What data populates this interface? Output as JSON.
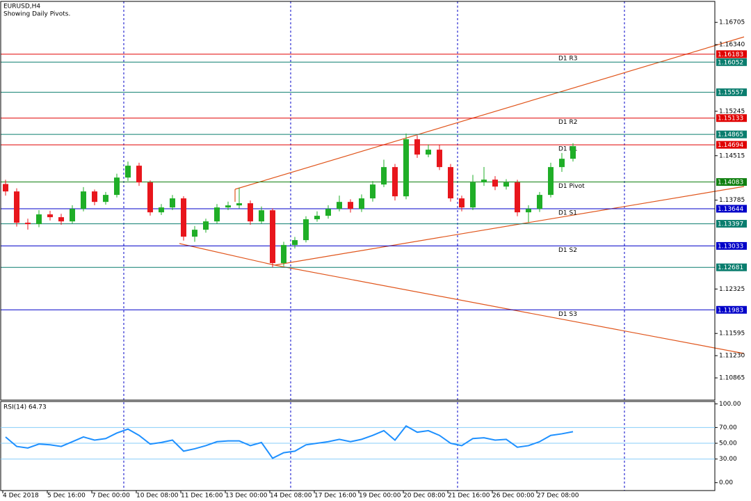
{
  "chart_data": {
    "type": "candlestick",
    "title": "EURUSD,H4",
    "subtitle": "Showing Daily Pivots.",
    "up_color": "#1fae27",
    "down_color": "#e8161c",
    "ylim": [
      1.105,
      1.1705
    ],
    "yticks": [
      1.16705,
      {
        "value": 1.1634,
        "label": "1.16340"
      },
      1.15245,
      1.14515,
      1.13785,
      1.12325,
      1.11595,
      {
        "value": 1.1123,
        "label": "1.11230"
      },
      1.10865
    ],
    "x_labels": [
      "4 Dec 2018",
      "5 Dec 16:00",
      "7 Dec 00:00",
      "10 Dec 08:00",
      "11 Dec 16:00",
      "13 Dec 00:00",
      "14 Dec 08:00",
      "17 Dec 16:00",
      "19 Dec 00:00",
      "20 Dec 08:00",
      "21 Dec 16:00",
      "26 Dec 00:00",
      "27 Dec 08:00"
    ],
    "levels": [
      {
        "value": 1.16183,
        "color": "#e00000",
        "name": "D1 R3"
      },
      {
        "value": 1.16052,
        "color": "#0a7d6e"
      },
      {
        "value": 1.15557,
        "color": "#0a7d6e"
      },
      {
        "value": 1.15133,
        "color": "#e00000",
        "name": "D1 R2"
      },
      {
        "value": 1.14865,
        "color": "#0a7d6e"
      },
      {
        "value": 1.14694,
        "color": "#e00000",
        "name": "D1 R1"
      },
      {
        "value": 1.14083,
        "color": "#108010",
        "name": "D1 Pivot"
      },
      {
        "value": 1.13644,
        "color": "#0000c8",
        "name": "D1 S1"
      },
      {
        "value": 1.13397,
        "color": "#0a7d6e"
      },
      {
        "value": 1.13033,
        "color": "#0000c8",
        "name": "D1 S2"
      },
      {
        "value": 1.12681,
        "color": "#0a7d6e"
      },
      {
        "value": 1.11983,
        "color": "#0000c8",
        "name": "D1 S3"
      }
    ],
    "ohlc": [
      [
        1.1405,
        1.1412,
        1.1386,
        1.13928
      ],
      [
        1.13928,
        1.1398,
        1.1335,
        1.13414
      ],
      [
        1.13414,
        1.1348,
        1.133,
        1.13391
      ],
      [
        1.13391,
        1.1362,
        1.1334,
        1.13551
      ],
      [
        1.13551,
        1.1361,
        1.1345,
        1.13505
      ],
      [
        1.13505,
        1.1356,
        1.1338,
        1.13436
      ],
      [
        1.13436,
        1.137,
        1.134,
        1.13642
      ],
      [
        1.13642,
        1.14,
        1.136,
        1.13928
      ],
      [
        1.13928,
        1.1396,
        1.137,
        1.13756
      ],
      [
        1.13756,
        1.1392,
        1.1371,
        1.13871
      ],
      [
        1.13871,
        1.1422,
        1.1383,
        1.14156
      ],
      [
        1.14156,
        1.1442,
        1.141,
        1.14351
      ],
      [
        1.14351,
        1.144,
        1.1402,
        1.14076
      ],
      [
        1.14076,
        1.1411,
        1.1353,
        1.13585
      ],
      [
        1.13585,
        1.1372,
        1.1354,
        1.13665
      ],
      [
        1.13665,
        1.1387,
        1.1362,
        1.13814
      ],
      [
        1.13814,
        1.1385,
        1.1312,
        1.13185
      ],
      [
        1.13185,
        1.1336,
        1.131,
        1.13299
      ],
      [
        1.13299,
        1.1348,
        1.1325,
        1.13436
      ],
      [
        1.13436,
        1.1372,
        1.134,
        1.13665
      ],
      [
        1.13665,
        1.1376,
        1.1362,
        1.13699
      ],
      [
        1.13699,
        1.1399,
        1.1365,
        1.13734
      ],
      [
        1.13734,
        1.1378,
        1.1338,
        1.13436
      ],
      [
        1.13436,
        1.1368,
        1.134,
        1.13619
      ],
      [
        1.13619,
        1.1365,
        1.1268,
        1.12751
      ],
      [
        1.12751,
        1.131,
        1.127,
        1.13048
      ],
      [
        1.13048,
        1.1318,
        1.1299,
        1.13128
      ],
      [
        1.13128,
        1.1352,
        1.1309,
        1.13471
      ],
      [
        1.13471,
        1.136,
        1.1343,
        1.13528
      ],
      [
        1.13528,
        1.137,
        1.1348,
        1.13642
      ],
      [
        1.13642,
        1.1386,
        1.136,
        1.13756
      ],
      [
        1.13756,
        1.138,
        1.1358,
        1.13642
      ],
      [
        1.13642,
        1.1388,
        1.1359,
        1.13814
      ],
      [
        1.13814,
        1.141,
        1.1376,
        1.14042
      ],
      [
        1.14042,
        1.1445,
        1.14,
        1.14328
      ],
      [
        1.14328,
        1.1438,
        1.1378,
        1.13848
      ],
      [
        1.13848,
        1.1488,
        1.138,
        1.14785
      ],
      [
        1.14785,
        1.1485,
        1.1448,
        1.14534
      ],
      [
        1.14534,
        1.147,
        1.1449,
        1.14614
      ],
      [
        1.14614,
        1.1469,
        1.1428,
        1.14328
      ],
      [
        1.14328,
        1.1438,
        1.1376,
        1.13814
      ],
      [
        1.13814,
        1.1386,
        1.136,
        1.13665
      ],
      [
        1.13665,
        1.142,
        1.1362,
        1.14076
      ],
      [
        1.14076,
        1.1433,
        1.1402,
        1.14122
      ],
      [
        1.14122,
        1.1418,
        1.1395,
        1.14008
      ],
      [
        1.14008,
        1.1413,
        1.1396,
        1.14076
      ],
      [
        1.14076,
        1.1412,
        1.1352,
        1.13585
      ],
      [
        1.13585,
        1.137,
        1.1342,
        1.13642
      ],
      [
        1.13642,
        1.1392,
        1.1359,
        1.13871
      ],
      [
        1.13871,
        1.144,
        1.1383,
        1.14328
      ],
      [
        1.14328,
        1.1456,
        1.1425,
        1.14465
      ],
      [
        1.14465,
        1.1472,
        1.1442,
        1.14671
      ]
    ],
    "rsi": {
      "label": "RSI(14) 64.73",
      "color": "#1e90ff",
      "ylim": [
        -10,
        103
      ],
      "yticks": [
        {
          "value": 100,
          "label": "100.00"
        },
        {
          "value": 70,
          "label": "70.00"
        },
        {
          "value": 50,
          "label": "50.00"
        },
        {
          "value": 30,
          "label": "30.00"
        },
        {
          "value": 0,
          "label": "0.00"
        }
      ],
      "levels": [
        70,
        50,
        30
      ],
      "values": [
        58,
        46,
        44,
        49,
        48,
        46,
        52,
        58,
        54,
        56,
        63,
        68,
        60,
        49,
        51,
        54,
        40,
        43,
        47,
        52,
        53,
        53,
        47,
        51,
        31,
        38,
        40,
        48,
        50,
        52,
        55,
        52,
        55,
        60,
        66,
        54,
        72,
        64,
        66,
        60,
        50,
        47,
        56,
        57,
        54,
        55,
        45,
        47,
        52,
        60,
        62,
        64.73
      ]
    }
  }
}
